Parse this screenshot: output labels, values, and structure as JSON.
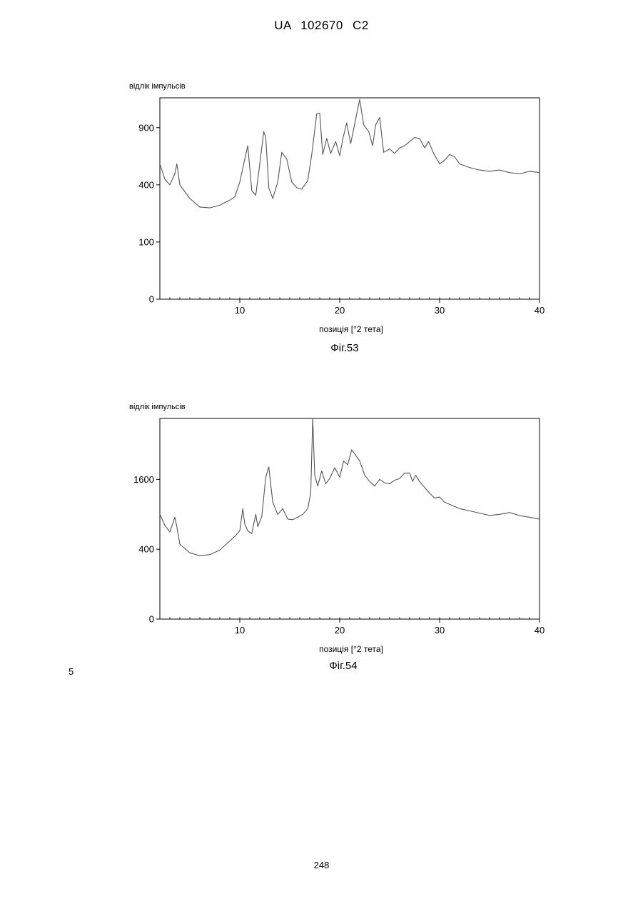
{
  "header": "UA 102670 C2",
  "line_number": "5",
  "page_number": "248",
  "chart_data": [
    {
      "type": "line",
      "figure_label": "Фіг.53",
      "ylabel": "відлік імпульсів",
      "xlabel": "позиція [°2 тета]",
      "x_ticks": [
        10,
        20,
        30,
        40
      ],
      "y_ticks": [
        0,
        100,
        400,
        900
      ],
      "y_scale": "sqrt",
      "xlim": [
        2,
        40
      ],
      "ylim": [
        0,
        1240
      ],
      "grid": false,
      "line_color": "#555555",
      "series": [
        {
          "x": [
            2,
            2.5,
            3,
            3.5,
            3.7,
            4,
            5,
            6,
            7,
            8,
            9,
            9.5,
            10,
            10.5,
            10.8,
            11.2,
            11.6,
            12,
            12.4,
            12.6,
            12.9,
            13.3,
            13.8,
            14.2,
            14.7,
            15.2,
            15.7,
            16.2,
            16.8,
            17.2,
            17.7,
            18,
            18.3,
            18.7,
            19.1,
            19.6,
            20,
            20.3,
            20.7,
            21.1,
            21.5,
            22,
            22.4,
            22.9,
            23.3,
            23.6,
            24,
            24.4,
            25,
            25.5,
            26,
            26.5,
            27,
            27.5,
            28,
            28.5,
            28.9,
            29.4,
            30,
            30.5,
            31,
            31.5,
            32,
            33,
            34,
            35,
            36,
            37,
            38,
            39,
            40
          ],
          "y": [
            560,
            440,
            400,
            480,
            560,
            400,
            310,
            260,
            255,
            270,
            300,
            320,
            420,
            600,
            720,
            360,
            330,
            560,
            860,
            800,
            380,
            310,
            420,
            660,
            600,
            420,
            380,
            370,
            430,
            640,
            1050,
            1060,
            640,
            790,
            650,
            760,
            630,
            780,
            950,
            740,
            940,
            1220,
            930,
            860,
            720,
            930,
            1010,
            660,
            690,
            650,
            700,
            720,
            760,
            800,
            790,
            700,
            760,
            650,
            560,
            590,
            640,
            620,
            560,
            530,
            510,
            500,
            510,
            490,
            480,
            500,
            490
          ]
        }
      ]
    },
    {
      "type": "line",
      "figure_label": "Фіг.54",
      "ylabel": "відлік імпульсів",
      "xlabel": "позиція [°2 тета]",
      "x_ticks": [
        10,
        20,
        30,
        40
      ],
      "y_ticks": [
        0,
        400,
        1600
      ],
      "y_scale": "sqrt",
      "xlim": [
        2,
        40
      ],
      "ylim": [
        0,
        3300
      ],
      "grid": false,
      "line_color": "#555555",
      "series": [
        {
          "x": [
            2,
            2.5,
            3,
            3.5,
            3.7,
            4,
            5,
            6,
            7,
            8,
            9,
            9.5,
            10,
            10.3,
            10.5,
            10.8,
            11.2,
            11.6,
            11.8,
            12.2,
            12.6,
            12.9,
            13.3,
            13.8,
            14.3,
            14.8,
            15.3,
            15.8,
            16.3,
            16.8,
            17.1,
            17.3,
            17.5,
            17.8,
            18.2,
            18.6,
            19,
            19.5,
            20,
            20.4,
            20.8,
            21.2,
            21.6,
            22,
            22.5,
            23,
            23.5,
            24,
            24.5,
            25,
            25.5,
            26,
            26.5,
            27,
            27.3,
            27.6,
            28,
            28.5,
            29,
            29.5,
            30,
            30.5,
            31,
            32,
            33,
            34,
            35,
            36,
            37,
            38,
            39,
            40
          ],
          "y": [
            900,
            720,
            620,
            850,
            700,
            460,
            360,
            330,
            340,
            390,
            500,
            560,
            640,
            1000,
            740,
            640,
            600,
            900,
            700,
            860,
            1650,
            1900,
            1120,
            900,
            1000,
            820,
            810,
            850,
            900,
            1000,
            1300,
            3300,
            1700,
            1450,
            1800,
            1500,
            1620,
            1880,
            1650,
            2050,
            1950,
            2350,
            2200,
            2050,
            1700,
            1550,
            1450,
            1600,
            1520,
            1500,
            1580,
            1620,
            1750,
            1750,
            1550,
            1700,
            1550,
            1420,
            1300,
            1200,
            1220,
            1120,
            1080,
            1000,
            960,
            920,
            880,
            900,
            930,
            880,
            850,
            820
          ]
        }
      ]
    }
  ]
}
